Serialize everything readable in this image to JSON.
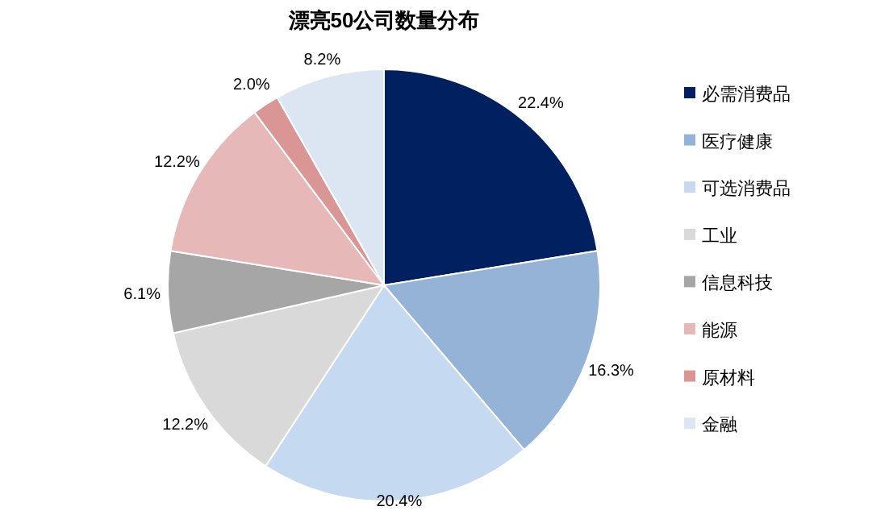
{
  "chart_data": {
    "type": "pie",
    "title": "漂亮50公司数量分布",
    "categories": [
      "必需消费品",
      "医疗健康",
      "可选消费品",
      "工业",
      "信息科技",
      "能源",
      "原材料",
      "金融"
    ],
    "values": [
      22.4,
      16.3,
      20.4,
      12.2,
      6.1,
      12.2,
      2.0,
      8.2
    ],
    "colors": [
      "#002060",
      "#95b3d7",
      "#c5d9f1",
      "#d9d9d9",
      "#a6a6a6",
      "#e6b9b8",
      "#d99694",
      "#dce6f2"
    ],
    "value_labels": [
      "22.4%",
      "16.3%",
      "20.4%",
      "12.2%",
      "6.1%",
      "12.2%",
      "2.0%",
      "8.2%"
    ],
    "legend": "right"
  }
}
